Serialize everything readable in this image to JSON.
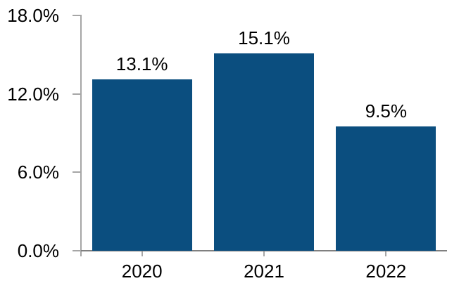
{
  "chart_data": {
    "type": "bar",
    "title": "",
    "xlabel": "",
    "ylabel": "",
    "categories": [
      "2020",
      "2021",
      "2022"
    ],
    "values": [
      13.1,
      15.1,
      9.5
    ],
    "value_labels": [
      "13.1%",
      "15.1%",
      "9.5%"
    ],
    "y_ticks": [
      {
        "value": 0,
        "label": "0.0%"
      },
      {
        "value": 6,
        "label": "6.0%"
      },
      {
        "value": 12,
        "label": "12.0%"
      },
      {
        "value": 18,
        "label": "18.0%"
      }
    ],
    "ylim": [
      0,
      18
    ],
    "grid": false,
    "legend": false,
    "colors": {
      "bar": "#0B4E7F",
      "x_axis_line": "#808080",
      "y_axis_line": "#A6A6A6",
      "tick": "#A6A6A6",
      "label_text": "#000000"
    }
  }
}
